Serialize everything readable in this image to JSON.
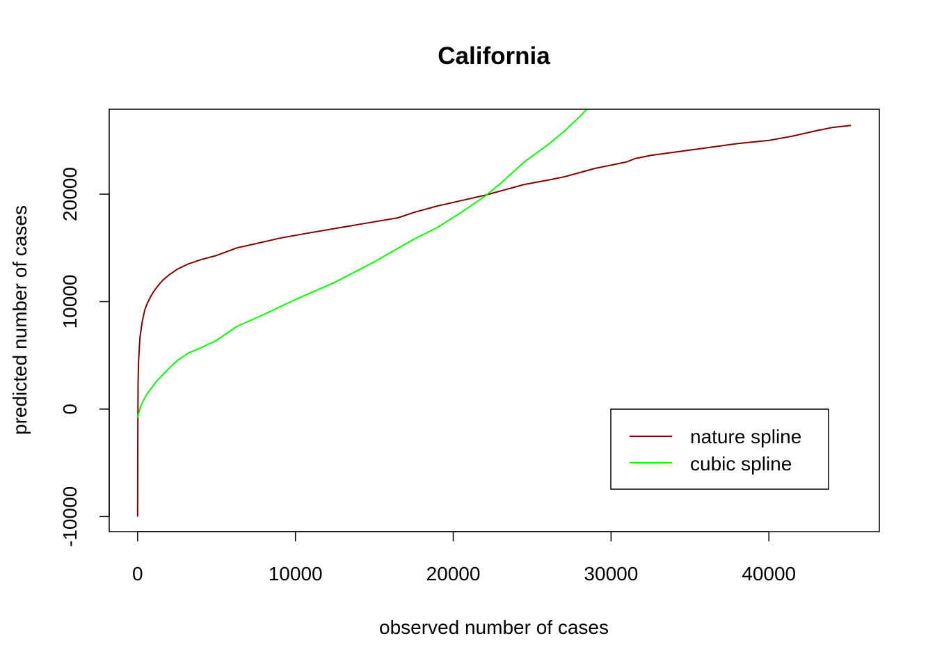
{
  "chart_data": {
    "type": "line",
    "title": "California",
    "xlabel": "observed number of cases",
    "ylabel": "predicted number of cases",
    "xlim": [
      -1800,
      47000
    ],
    "ylim": [
      -11400,
      27900
    ],
    "x_ticks": [
      0,
      10000,
      20000,
      30000,
      40000
    ],
    "y_ticks": [
      -10000,
      0,
      10000,
      20000
    ],
    "grid": false,
    "legend_position": "bottom-right",
    "series": [
      {
        "name": "nature spline",
        "color": "#800000",
        "x": [
          0,
          10,
          30,
          60,
          100,
          150,
          200,
          300,
          450,
          600,
          800,
          1000,
          1300,
          1600,
          2000,
          2500,
          3200,
          4000,
          5000,
          6300,
          7500,
          9000,
          10500,
          12500,
          14500,
          16500,
          17500,
          19000,
          20500,
          22000,
          23500,
          24500,
          26000,
          27000,
          28000,
          29000,
          30000,
          31000,
          31500,
          32500,
          34000,
          36000,
          38000,
          40000,
          41500,
          43000,
          44000,
          45200
        ],
        "y": [
          -10000,
          -2000,
          2500,
          4500,
          5500,
          6700,
          7200,
          8200,
          9200,
          9800,
          10400,
          10900,
          11500,
          12000,
          12500,
          13000,
          13500,
          13900,
          14300,
          15000,
          15400,
          15900,
          16300,
          16800,
          17300,
          17800,
          18300,
          18900,
          19400,
          19900,
          20500,
          20900,
          21300,
          21600,
          22000,
          22400,
          22700,
          23000,
          23300,
          23600,
          23900,
          24300,
          24700,
          25000,
          25400,
          25900,
          26200,
          26400
        ]
      },
      {
        "name": "cubic spline",
        "color": "#00ff00",
        "x": [
          0,
          100,
          200,
          400,
          600,
          900,
          1200,
          1600,
          2000,
          2500,
          3200,
          4000,
          5000,
          6300,
          8000,
          10000,
          12500,
          15000,
          17500,
          19000,
          20500,
          22000,
          23000,
          24500,
          26000,
          27000,
          28000,
          28600
        ],
        "y": [
          -800,
          -200,
          300,
          900,
          1400,
          2000,
          2600,
          3200,
          3800,
          4500,
          5200,
          5700,
          6400,
          7700,
          8800,
          10200,
          11800,
          13700,
          15800,
          16900,
          18300,
          19800,
          21000,
          23000,
          24600,
          25800,
          27200,
          28100
        ]
      }
    ]
  }
}
